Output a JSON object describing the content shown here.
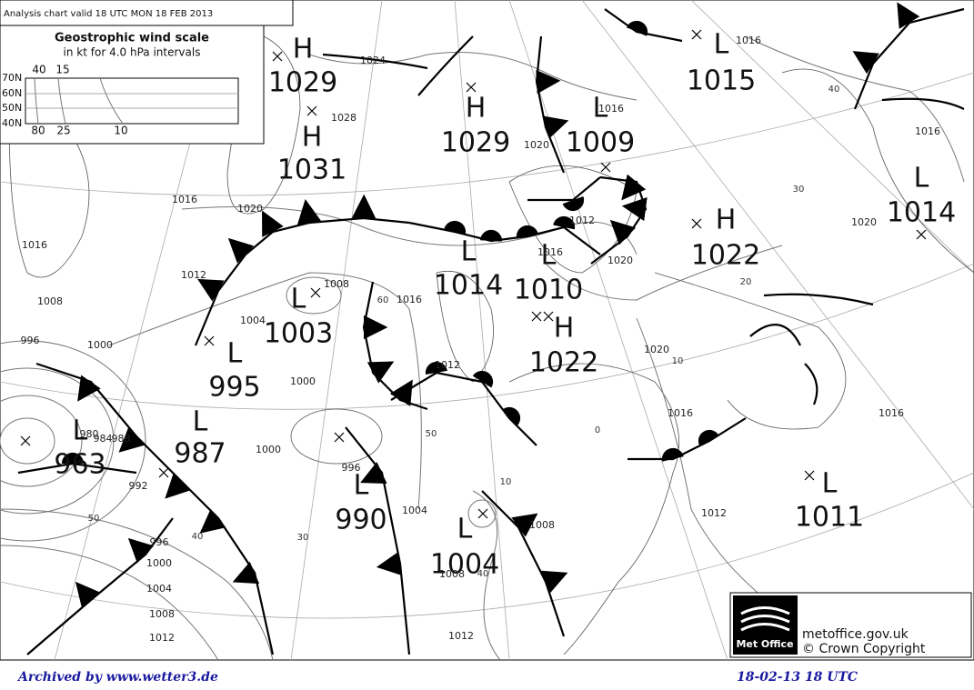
{
  "header": {
    "title": "Analysis chart  valid 18 UTC MON 18  FEB 2013"
  },
  "wind_scale": {
    "title": "Geostrophic wind scale",
    "subtitle": "in kt for 4.0 hPa intervals",
    "latitudes": [
      "70N",
      "60N",
      "50N",
      "40N"
    ],
    "top_speeds": [
      "40",
      "15"
    ],
    "bottom_speeds": [
      "80",
      "25",
      "10"
    ]
  },
  "centers": [
    {
      "type": "H",
      "pressure": "1029"
    },
    {
      "type": "H",
      "pressure": "1031"
    },
    {
      "type": "H",
      "pressure": "1029"
    },
    {
      "type": "L",
      "pressure": "1009"
    },
    {
      "type": "L",
      "pressure": "1015"
    },
    {
      "type": "H",
      "pressure": "1022"
    },
    {
      "type": "L",
      "pressure": "1014"
    },
    {
      "type": "L",
      "pressure": "1014"
    },
    {
      "type": "L",
      "pressure": "1010"
    },
    {
      "type": "L",
      "pressure": "1003"
    },
    {
      "type": "H",
      "pressure": "1022"
    },
    {
      "type": "L",
      "pressure": "995"
    },
    {
      "type": "L",
      "pressure": "987"
    },
    {
      "type": "L",
      "pressure": "963"
    },
    {
      "type": "L",
      "pressure": "990"
    },
    {
      "type": "L",
      "pressure": "1004"
    },
    {
      "type": "L",
      "pressure": "1011"
    }
  ],
  "isobar_labels": [
    "1024",
    "1028",
    "1020",
    "1016",
    "1016",
    "1016",
    "1016",
    "1020",
    "1016",
    "1012",
    "1008",
    "996",
    "1000",
    "1004",
    "1008",
    "1016",
    "1012",
    "1016",
    "1020",
    "1012",
    "1000",
    "1000",
    "996",
    "1004",
    "980",
    "984",
    "988",
    "992",
    "996",
    "1000",
    "1004",
    "1008",
    "1012",
    "1008",
    "1008",
    "1012",
    "1012",
    "1016",
    "1020",
    "1016",
    "1020"
  ],
  "wind_labels": [
    "40",
    "30",
    "20",
    "10",
    "0",
    "60",
    "50",
    "10",
    "40",
    "50",
    "40",
    "30"
  ],
  "logo": {
    "name": "Met Office",
    "site": "metoffice.gov.uk",
    "copyright": "© Crown Copyright"
  },
  "footer": {
    "archive": "Archived by www.wetter3.de",
    "date": "18-02-13 18 UTC"
  }
}
